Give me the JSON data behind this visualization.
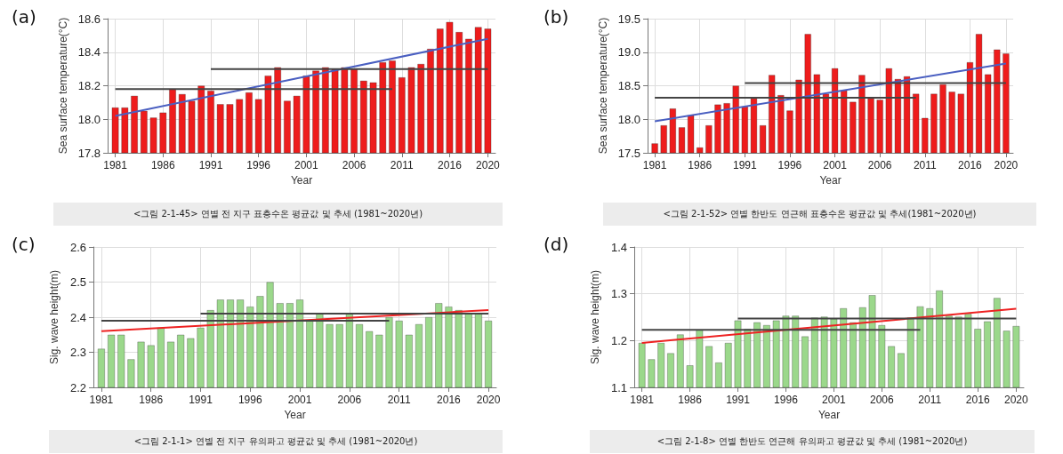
{
  "chart_data": [
    {
      "type": "bar",
      "title": "(a)",
      "xlabel": "Year",
      "ylabel": "Sea surface temperature(°C)",
      "grid": true,
      "marker": "none",
      "x": [
        1981,
        1982,
        1983,
        1984,
        1985,
        1986,
        1987,
        1988,
        1989,
        1990,
        1991,
        1992,
        1993,
        1994,
        1995,
        1996,
        1997,
        1998,
        1999,
        2000,
        2001,
        2002,
        2003,
        2004,
        2005,
        2006,
        2007,
        2008,
        2009,
        2010,
        2011,
        2012,
        2013,
        2014,
        2015,
        2016,
        2017,
        2018,
        2019,
        2020
      ],
      "xlim": [
        1980.2,
        2020.8
      ],
      "xticks": [
        1981,
        1986,
        1991,
        1996,
        2001,
        2006,
        2011,
        2016,
        2020
      ],
      "ylim": [
        17.8,
        18.6
      ],
      "yticks": [
        {
          "value": 17.8,
          "label": "17.8"
        },
        {
          "value": 18,
          "label": "18.0"
        },
        {
          "value": 18.2,
          "label": "18.2"
        },
        {
          "value": 18.4,
          "label": "18.4"
        },
        {
          "value": 18.6,
          "label": "18.6"
        }
      ],
      "series": [
        {
          "color": "#ee1c1c",
          "values": [
            18.07,
            18.07,
            18.14,
            18.05,
            18.01,
            18.04,
            18.18,
            18.15,
            18.11,
            18.2,
            18.17,
            18.09,
            18.09,
            18.12,
            18.16,
            18.12,
            18.26,
            18.31,
            18.11,
            18.14,
            18.26,
            18.29,
            18.31,
            18.3,
            18.31,
            18.3,
            18.23,
            18.22,
            18.34,
            18.35,
            18.25,
            18.31,
            18.33,
            18.42,
            18.54,
            18.58,
            18.52,
            18.48,
            18.55,
            18.54
          ]
        },
        {
          "type": "line",
          "color": "#4a5fc1",
          "x": [
            1981,
            2020
          ],
          "values": [
            18.02,
            18.48
          ]
        },
        {
          "type": "line",
          "color": "#444444",
          "x": [
            1981,
            2010
          ],
          "values": [
            18.18,
            18.18
          ]
        },
        {
          "type": "line",
          "color": "#444444",
          "x": [
            1991,
            2020
          ],
          "values": [
            18.3,
            18.3
          ]
        }
      ],
      "annotations": [
        "<그림 2-1-45>  연별 전 지구 표층수온 평균값 및 추세 (1981~2020년)"
      ]
    },
    {
      "type": "bar",
      "title": "(b)",
      "xlabel": "Year",
      "ylabel": "Sea surface temperature(°C)",
      "grid": true,
      "marker": "none",
      "x": [
        1981,
        1982,
        1983,
        1984,
        1985,
        1986,
        1987,
        1988,
        1989,
        1990,
        1991,
        1992,
        1993,
        1994,
        1995,
        1996,
        1997,
        1998,
        1999,
        2000,
        2001,
        2002,
        2003,
        2004,
        2005,
        2006,
        2007,
        2008,
        2009,
        2010,
        2011,
        2012,
        2013,
        2014,
        2015,
        2016,
        2017,
        2018,
        2019,
        2020
      ],
      "xlim": [
        1980.2,
        2020.8
      ],
      "xticks": [
        1981,
        1986,
        1991,
        1996,
        2001,
        2006,
        2011,
        2016,
        2020
      ],
      "ylim": [
        17.5,
        19.5
      ],
      "yticks": [
        17.5,
        {
          "value": 18,
          "label": "18.0"
        },
        18.5,
        {
          "value": 19,
          "label": "19.0"
        },
        19.5
      ],
      "series": [
        {
          "color": "#ee1c1c",
          "values": [
            17.64,
            17.91,
            18.16,
            17.88,
            18.06,
            17.58,
            17.91,
            18.22,
            18.24,
            18.5,
            18.19,
            18.31,
            17.91,
            18.66,
            18.36,
            18.13,
            18.59,
            19.27,
            18.67,
            18.38,
            18.76,
            18.43,
            18.26,
            18.66,
            18.31,
            18.29,
            18.76,
            18.6,
            18.64,
            18.38,
            18.02,
            18.38,
            18.52,
            18.41,
            18.38,
            18.85,
            19.27,
            18.67,
            19.04,
            18.98
          ]
        },
        {
          "type": "line",
          "color": "#4a5fc1",
          "x": [
            1981,
            2020
          ],
          "values": [
            17.97,
            18.83
          ]
        },
        {
          "type": "line",
          "color": "#444444",
          "x": [
            1981,
            2010
          ],
          "values": [
            18.32,
            18.32
          ]
        },
        {
          "type": "line",
          "color": "#444444",
          "x": [
            1991,
            2020
          ],
          "values": [
            18.54,
            18.54
          ]
        }
      ],
      "annotations": [
        "<그림 2-1-52>  연별 한반도 연근해 표층수온 평균값 및 추세(1981~2020년)"
      ]
    },
    {
      "type": "bar",
      "title": "(c)",
      "xlabel": "Year",
      "ylabel": "Sig. wave height(m)",
      "grid": true,
      "marker": "none",
      "x": [
        1981,
        1982,
        1983,
        1984,
        1985,
        1986,
        1987,
        1988,
        1989,
        1990,
        1991,
        1992,
        1993,
        1994,
        1995,
        1996,
        1997,
        1998,
        1999,
        2000,
        2001,
        2002,
        2003,
        2004,
        2005,
        2006,
        2007,
        2008,
        2009,
        2010,
        2011,
        2012,
        2013,
        2014,
        2015,
        2016,
        2017,
        2018,
        2019,
        2020
      ],
      "xlim": [
        1980.2,
        2020.8
      ],
      "xticks": [
        1981,
        1986,
        1991,
        1996,
        2001,
        2006,
        2011,
        2016,
        2020
      ],
      "ylim": [
        2.2,
        2.6
      ],
      "yticks": [
        2.2,
        2.3,
        2.4,
        2.5,
        2.6
      ],
      "series": [
        {
          "color": "#9bd88b",
          "values": [
            2.31,
            2.35,
            2.35,
            2.28,
            2.33,
            2.32,
            2.37,
            2.33,
            2.35,
            2.34,
            2.37,
            2.42,
            2.45,
            2.45,
            2.45,
            2.43,
            2.46,
            2.5,
            2.44,
            2.44,
            2.45,
            2.39,
            2.41,
            2.38,
            2.38,
            2.41,
            2.38,
            2.36,
            2.35,
            2.4,
            2.39,
            2.35,
            2.38,
            2.4,
            2.44,
            2.43,
            2.42,
            2.41,
            2.41,
            2.39
          ]
        },
        {
          "type": "line",
          "color": "#ee2222",
          "x": [
            1981,
            2020
          ],
          "values": [
            2.36,
            2.42
          ]
        },
        {
          "type": "line",
          "color": "#444444",
          "x": [
            1981,
            2010
          ],
          "values": [
            2.39,
            2.39
          ]
        },
        {
          "type": "line",
          "color": "#444444",
          "x": [
            1991,
            2020
          ],
          "values": [
            2.41,
            2.41
          ]
        }
      ],
      "annotations": [
        "<그림 2-1-1>  연별 전 지구 유의파고 평균값 및 추세 (1981~2020년)"
      ]
    },
    {
      "type": "bar",
      "title": "(d)",
      "xlabel": "Year",
      "ylabel": "Sig. wave height(m)",
      "grid": true,
      "marker": "none",
      "x": [
        1981,
        1982,
        1983,
        1984,
        1985,
        1986,
        1987,
        1988,
        1989,
        1990,
        1991,
        1992,
        1993,
        1994,
        1995,
        1996,
        1997,
        1998,
        1999,
        2000,
        2001,
        2002,
        2003,
        2004,
        2005,
        2006,
        2007,
        2008,
        2009,
        2010,
        2011,
        2012,
        2013,
        2014,
        2015,
        2016,
        2017,
        2018,
        2019,
        2020
      ],
      "xlim": [
        1980.2,
        2020.8
      ],
      "xticks": [
        1981,
        1986,
        1991,
        1996,
        2001,
        2006,
        2011,
        2016,
        2020
      ],
      "ylim": [
        1.1,
        1.4
      ],
      "yticks": [
        1.1,
        1.2,
        1.3,
        1.4
      ],
      "series": [
        {
          "color": "#9bd88b",
          "values": [
            1.195,
            1.16,
            1.195,
            1.173,
            1.213,
            1.147,
            1.223,
            1.188,
            1.153,
            1.195,
            1.243,
            1.225,
            1.239,
            1.233,
            1.243,
            1.253,
            1.253,
            1.209,
            1.249,
            1.251,
            1.247,
            1.269,
            1.239,
            1.271,
            1.297,
            1.233,
            1.188,
            1.173,
            1.249,
            1.273,
            1.269,
            1.307,
            1.253,
            1.251,
            1.257,
            1.225,
            1.241,
            1.291,
            1.221,
            1.231
          ]
        },
        {
          "type": "line",
          "color": "#ee2222",
          "x": [
            1981,
            2020
          ],
          "values": [
            1.195,
            1.268
          ]
        },
        {
          "type": "line",
          "color": "#444444",
          "x": [
            1981,
            2010
          ],
          "values": [
            1.223,
            1.223
          ]
        },
        {
          "type": "line",
          "color": "#444444",
          "x": [
            1991,
            2020
          ],
          "values": [
            1.247,
            1.247
          ]
        }
      ],
      "annotations": [
        "<그림 2-1-8>  연별 한반도 연근해 유의파고 평균값 및 추세 (1981~2020년)"
      ]
    }
  ]
}
